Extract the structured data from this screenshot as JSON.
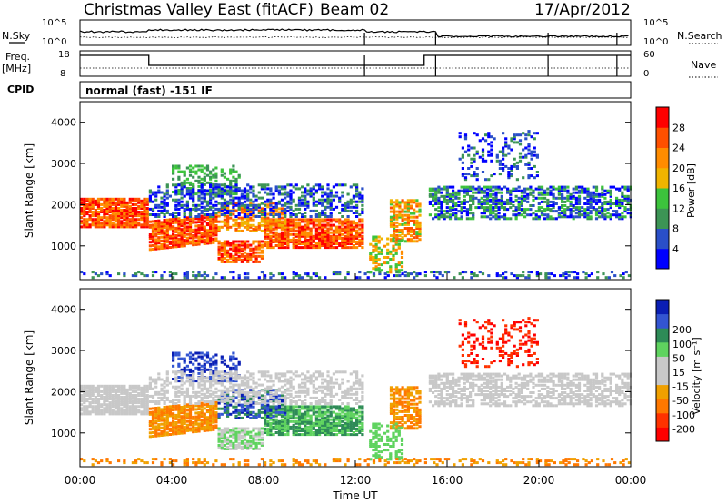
{
  "header": {
    "title": "Christmas Valley East (fitACF)",
    "beam": "Beam 02",
    "date": "17/Apr/2012"
  },
  "panel_sky": {
    "left_label": "N.Sky",
    "right_label": "N.Search",
    "left_ticks": [
      "10^5",
      "10^0"
    ],
    "right_ticks": [
      "10^5",
      "10^0"
    ]
  },
  "panel_freq": {
    "left_label_1": "Freq.",
    "left_label_2": "[MHz]",
    "right_label": "Nave",
    "left_ticks": [
      "18",
      "8"
    ],
    "right_ticks": [
      "60",
      "0"
    ]
  },
  "cpid": {
    "label": "CPID",
    "mode": "normal (fast) -151 IF"
  },
  "colors": {
    "power": [
      "#0000ff",
      "#2a4fc8",
      "#3c9455",
      "#3cc33c",
      "#f0b400",
      "#ff8c00",
      "#ff5000",
      "#ff0000"
    ],
    "velocity": [
      "#0a1eb4",
      "#3355d2",
      "#2e8b57",
      "#5fd35f",
      "#c8c8c8",
      "#c8c8c8",
      "#f0a000",
      "#ff7800",
      "#ff3200",
      "#ff0000"
    ]
  },
  "chart_data": [
    {
      "type": "heatmap",
      "panel": "power",
      "ylabel": "Slant Range [km]",
      "ylim": [
        180,
        4500
      ],
      "yticks": [
        "1000",
        "2000",
        "3000",
        "4000"
      ],
      "colorbar_label": "Power [dB]",
      "colorbar_ticks": [
        "4",
        "8",
        "12",
        "16",
        "20",
        "24",
        "28"
      ]
    },
    {
      "type": "heatmap",
      "panel": "velocity",
      "ylabel": "Slant Range [km]",
      "ylim": [
        180,
        4500
      ],
      "yticks": [
        "1000",
        "2000",
        "3000",
        "4000"
      ],
      "colorbar_label": "Velocity [m s⁻¹]",
      "colorbar_ticks": [
        "200",
        "100",
        "50",
        "15",
        "-15",
        "-50",
        "-100",
        "-200"
      ]
    }
  ],
  "x_axis": {
    "label": "Time UT",
    "xlim_hours": [
      0,
      24
    ],
    "ticks": [
      "00:00",
      "04:00",
      "08:00",
      "12:00",
      "16:00",
      "20:00",
      "00:00"
    ]
  }
}
